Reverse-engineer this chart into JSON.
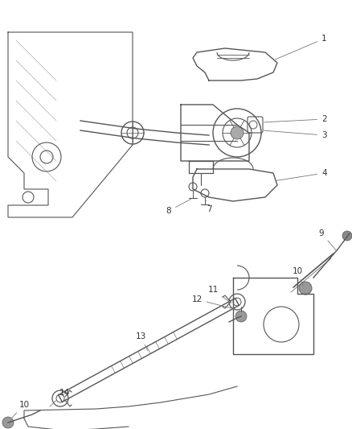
{
  "background_color": "#ffffff",
  "fig_width": 4.38,
  "fig_height": 5.33,
  "dpi": 100,
  "image_b64": ""
}
